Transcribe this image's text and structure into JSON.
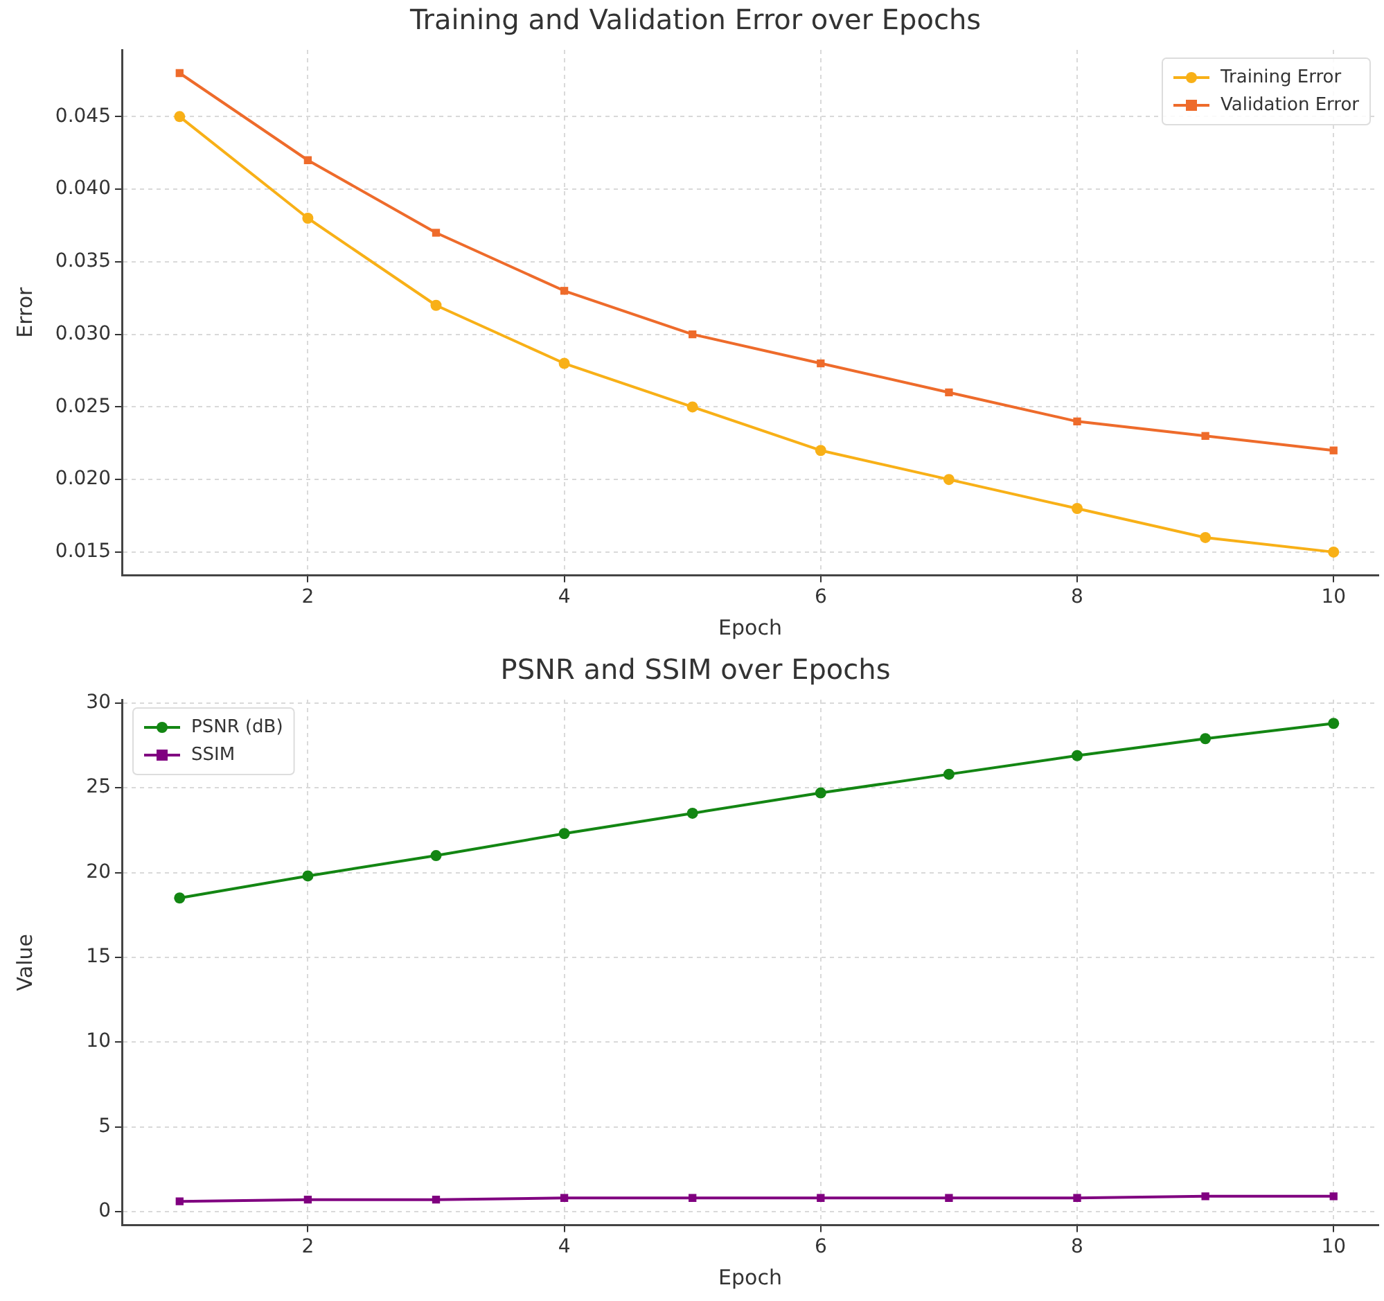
{
  "chart_data": [
    {
      "type": "line",
      "title": "Training and Validation Error over Epochs",
      "xlabel": "Epoch",
      "ylabel": "Error",
      "x": [
        1,
        2,
        3,
        4,
        5,
        6,
        7,
        8,
        9,
        10
      ],
      "series": [
        {
          "name": "Training Error",
          "color": "#f8b017",
          "marker": "circle",
          "values": [
            0.045,
            0.038,
            0.032,
            0.028,
            0.025,
            0.022,
            0.02,
            0.018,
            0.016,
            0.015
          ]
        },
        {
          "name": "Validation Error",
          "color": "#ee6b2b",
          "marker": "square",
          "values": [
            0.048,
            0.042,
            0.037,
            0.033,
            0.03,
            0.028,
            0.026,
            0.024,
            0.023,
            0.022
          ]
        }
      ],
      "xlim": [
        0.55,
        10.35
      ],
      "xticks": [
        2,
        4,
        6,
        8,
        10
      ],
      "ylim": [
        0.0134,
        0.0496
      ],
      "yticks": [
        {
          "value": 0.015,
          "label": "0.015"
        },
        {
          "value": 0.02,
          "label": "0.020"
        },
        {
          "value": 0.025,
          "label": "0.025"
        },
        {
          "value": 0.03,
          "label": "0.030"
        },
        {
          "value": 0.035,
          "label": "0.035"
        },
        {
          "value": 0.04,
          "label": "0.040"
        },
        {
          "value": 0.045,
          "label": "0.045"
        }
      ],
      "grid": true,
      "legend": "top right",
      "line_style": "solid"
    },
    {
      "type": "line",
      "title": "PSNR and SSIM over Epochs",
      "xlabel": "Epoch",
      "ylabel": "Value",
      "x": [
        1,
        2,
        3,
        4,
        5,
        6,
        7,
        8,
        9,
        10
      ],
      "series": [
        {
          "name": "PSNR (dB)",
          "color": "#138613",
          "marker": "circle",
          "values": [
            18.5,
            19.8,
            21.0,
            22.3,
            23.5,
            24.7,
            25.8,
            26.9,
            27.9,
            28.8
          ]
        },
        {
          "name": "SSIM",
          "color": "#800080",
          "marker": "square",
          "values": [
            0.6,
            0.7,
            0.7,
            0.8,
            0.8,
            0.8,
            0.8,
            0.8,
            0.9,
            0.9
          ]
        }
      ],
      "xlim": [
        0.55,
        10.35
      ],
      "xticks": [
        2,
        4,
        6,
        8,
        10
      ],
      "ylim": [
        -0.8,
        30.2
      ],
      "yticks": [
        0,
        5,
        10,
        15,
        20,
        25,
        30
      ],
      "grid": true,
      "legend": "top left",
      "line_style": "solid"
    }
  ]
}
